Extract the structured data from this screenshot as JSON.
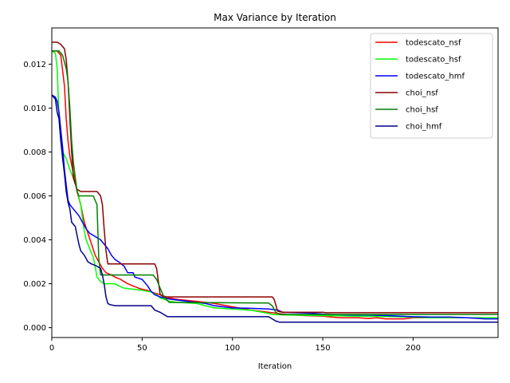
{
  "chart_data": {
    "type": "line",
    "title": "Max Variance by Iteration",
    "xlabel": "Iteration",
    "ylabel": "",
    "xlim": [
      0,
      247
    ],
    "ylim": [
      -0.00045,
      0.01365
    ],
    "xticks": [
      0,
      50,
      100,
      150,
      200
    ],
    "xtick_labels": [
      "0",
      "50",
      "100",
      "150",
      "200"
    ],
    "yticks": [
      0.0,
      0.002,
      0.004,
      0.006,
      0.008,
      0.01,
      0.012
    ],
    "ytick_labels": [
      "0.000",
      "0.002",
      "0.004",
      "0.006",
      "0.008",
      "0.010",
      "0.012"
    ],
    "grid": false,
    "legend_position": "top-right",
    "series": [
      {
        "name": "todescato_nsf",
        "color": "#ff0000",
        "points": [
          [
            0,
            0.0126
          ],
          [
            3,
            0.0126
          ],
          [
            5,
            0.0124
          ],
          [
            7,
            0.011
          ],
          [
            8,
            0.0095
          ],
          [
            9,
            0.0085
          ],
          [
            10,
            0.0078
          ],
          [
            12,
            0.007
          ],
          [
            14,
            0.0062
          ],
          [
            16,
            0.0056
          ],
          [
            18,
            0.0048
          ],
          [
            20,
            0.0043
          ],
          [
            22,
            0.0038
          ],
          [
            24,
            0.0033
          ],
          [
            26,
            0.003
          ],
          [
            28,
            0.0027
          ],
          [
            30,
            0.0025
          ],
          [
            33,
            0.0024
          ],
          [
            35,
            0.0023
          ],
          [
            38,
            0.0022
          ],
          [
            40,
            0.0021
          ],
          [
            42,
            0.002
          ],
          [
            45,
            0.0019
          ],
          [
            48,
            0.0018
          ],
          [
            50,
            0.00175
          ],
          [
            53,
            0.0017
          ],
          [
            56,
            0.0016
          ],
          [
            60,
            0.0015
          ],
          [
            65,
            0.00135
          ],
          [
            70,
            0.00128
          ],
          [
            80,
            0.0012
          ],
          [
            90,
            0.0011
          ],
          [
            100,
            0.00095
          ],
          [
            110,
            0.0008
          ],
          [
            120,
            0.0007
          ],
          [
            125,
            0.00065
          ],
          [
            130,
            0.0006
          ],
          [
            140,
            0.00055
          ],
          [
            150,
            0.00052
          ],
          [
            155,
            0.00048
          ],
          [
            160,
            0.00045
          ],
          [
            170,
            0.00045
          ],
          [
            175,
            0.00042
          ],
          [
            180,
            0.00045
          ],
          [
            185,
            0.0004
          ],
          [
            195,
            0.0004
          ],
          [
            200,
            0.00045
          ],
          [
            247,
            0.00045
          ]
        ]
      },
      {
        "name": "todescato_hsf",
        "color": "#00ff00",
        "points": [
          [
            0,
            0.0126
          ],
          [
            2,
            0.0125
          ],
          [
            3,
            0.0118
          ],
          [
            4,
            0.0095
          ],
          [
            5,
            0.0085
          ],
          [
            6,
            0.008
          ],
          [
            8,
            0.0077
          ],
          [
            10,
            0.0072
          ],
          [
            12,
            0.0068
          ],
          [
            14,
            0.0063
          ],
          [
            16,
            0.0056
          ],
          [
            17,
            0.005
          ],
          [
            18,
            0.0044
          ],
          [
            19,
            0.004
          ],
          [
            21,
            0.0036
          ],
          [
            23,
            0.0032
          ],
          [
            24,
            0.0028
          ],
          [
            25,
            0.0023
          ],
          [
            27,
            0.0021
          ],
          [
            29,
            0.002
          ],
          [
            35,
            0.002
          ],
          [
            37,
            0.0019
          ],
          [
            40,
            0.0018
          ],
          [
            45,
            0.00175
          ],
          [
            50,
            0.0017
          ],
          [
            55,
            0.00162
          ],
          [
            58,
            0.0015
          ],
          [
            60,
            0.00135
          ],
          [
            62,
            0.0013
          ],
          [
            65,
            0.0012
          ],
          [
            70,
            0.00115
          ],
          [
            80,
            0.0011
          ],
          [
            85,
            0.001
          ],
          [
            90,
            0.0009
          ],
          [
            100,
            0.00085
          ],
          [
            110,
            0.0008
          ],
          [
            120,
            0.00065
          ],
          [
            122,
            0.0006
          ],
          [
            130,
            0.00058
          ],
          [
            150,
            0.00055
          ],
          [
            170,
            0.00052
          ],
          [
            190,
            0.0005
          ],
          [
            210,
            0.00045
          ],
          [
            247,
            0.00045
          ]
        ]
      },
      {
        "name": "todescato_hmf",
        "color": "#0000ff",
        "points": [
          [
            0,
            0.0106
          ],
          [
            2,
            0.0105
          ],
          [
            3,
            0.0103
          ],
          [
            4,
            0.0098
          ],
          [
            5,
            0.009
          ],
          [
            6,
            0.0082
          ],
          [
            7,
            0.0072
          ],
          [
            8,
            0.0065
          ],
          [
            9,
            0.0058
          ],
          [
            10,
            0.0056
          ],
          [
            11,
            0.0055
          ],
          [
            13,
            0.0053
          ],
          [
            15,
            0.0051
          ],
          [
            17,
            0.0048
          ],
          [
            19,
            0.0045
          ],
          [
            21,
            0.0043
          ],
          [
            23,
            0.0042
          ],
          [
            25,
            0.0041
          ],
          [
            27,
            0.004
          ],
          [
            29,
            0.0038
          ],
          [
            31,
            0.0036
          ],
          [
            33,
            0.0033
          ],
          [
            35,
            0.0031
          ],
          [
            37,
            0.003
          ],
          [
            40,
            0.0028
          ],
          [
            42,
            0.0025
          ],
          [
            45,
            0.0025
          ],
          [
            46,
            0.0023
          ],
          [
            50,
            0.0022
          ],
          [
            53,
            0.0019
          ],
          [
            55,
            0.00165
          ],
          [
            57,
            0.0015
          ],
          [
            60,
            0.0014
          ],
          [
            65,
            0.0013
          ],
          [
            70,
            0.00125
          ],
          [
            75,
            0.0012
          ],
          [
            80,
            0.00115
          ],
          [
            85,
            0.0011
          ],
          [
            90,
            0.001
          ],
          [
            95,
            0.00095
          ],
          [
            100,
            0.0009
          ],
          [
            110,
            0.00088
          ],
          [
            120,
            0.00085
          ],
          [
            125,
            0.0008
          ],
          [
            128,
            0.0007
          ],
          [
            135,
            0.00068
          ],
          [
            145,
            0.00065
          ],
          [
            150,
            0.00062
          ],
          [
            155,
            0.0006
          ],
          [
            165,
            0.00058
          ],
          [
            175,
            0.00058
          ],
          [
            185,
            0.00055
          ],
          [
            200,
            0.0005
          ],
          [
            210,
            0.00048
          ],
          [
            220,
            0.00048
          ],
          [
            230,
            0.00045
          ],
          [
            240,
            0.0004
          ],
          [
            247,
            0.0004
          ]
        ]
      },
      {
        "name": "choi_nsf",
        "color": "#8b0000",
        "points": [
          [
            0,
            0.013
          ],
          [
            3,
            0.013
          ],
          [
            5,
            0.0129
          ],
          [
            7,
            0.0127
          ],
          [
            8,
            0.0122
          ],
          [
            9,
            0.0112
          ],
          [
            10,
            0.0095
          ],
          [
            11,
            0.008
          ],
          [
            12,
            0.0068
          ],
          [
            14,
            0.0063
          ],
          [
            16,
            0.0062
          ],
          [
            25,
            0.0062
          ],
          [
            27,
            0.006
          ],
          [
            28,
            0.0056
          ],
          [
            29,
            0.0045
          ],
          [
            30,
            0.0035
          ],
          [
            31,
            0.0029
          ],
          [
            57,
            0.0029
          ],
          [
            58,
            0.0027
          ],
          [
            60,
            0.0015
          ],
          [
            61,
            0.00145
          ],
          [
            62,
            0.0014
          ],
          [
            122,
            0.0014
          ],
          [
            123,
            0.0013
          ],
          [
            125,
            0.00075
          ],
          [
            128,
            0.0007
          ],
          [
            150,
            0.0007
          ],
          [
            152,
            0.00068
          ],
          [
            247,
            0.00068
          ]
        ]
      },
      {
        "name": "choi_hsf",
        "color": "#008000",
        "points": [
          [
            0,
            0.0126
          ],
          [
            4,
            0.0126
          ],
          [
            6,
            0.0124
          ],
          [
            8,
            0.0118
          ],
          [
            9,
            0.0112
          ],
          [
            10,
            0.01
          ],
          [
            11,
            0.0085
          ],
          [
            12,
            0.0075
          ],
          [
            14,
            0.0062
          ],
          [
            15,
            0.006
          ],
          [
            23,
            0.006
          ],
          [
            25,
            0.0056
          ],
          [
            26,
            0.0032
          ],
          [
            27,
            0.0024
          ],
          [
            56,
            0.0024
          ],
          [
            58,
            0.0022
          ],
          [
            60,
            0.0018
          ],
          [
            62,
            0.0014
          ],
          [
            65,
            0.00115
          ],
          [
            120,
            0.00112
          ],
          [
            122,
            0.001
          ],
          [
            124,
            0.0007
          ],
          [
            126,
            0.0006
          ],
          [
            247,
            0.0006
          ]
        ]
      },
      {
        "name": "choi_hmf",
        "color": "#00008b",
        "points": [
          [
            0,
            0.0106
          ],
          [
            2,
            0.0104
          ],
          [
            3,
            0.0098
          ],
          [
            4,
            0.0095
          ],
          [
            5,
            0.0085
          ],
          [
            6,
            0.0077
          ],
          [
            7,
            0.007
          ],
          [
            8,
            0.0062
          ],
          [
            9,
            0.0057
          ],
          [
            10,
            0.0054
          ],
          [
            11,
            0.0048
          ],
          [
            13,
            0.0046
          ],
          [
            14,
            0.0042
          ],
          [
            15,
            0.0038
          ],
          [
            16,
            0.0035
          ],
          [
            18,
            0.0033
          ],
          [
            20,
            0.003
          ],
          [
            22,
            0.0029
          ],
          [
            25,
            0.0028
          ],
          [
            27,
            0.0027
          ],
          [
            28,
            0.0024
          ],
          [
            29,
            0.002
          ],
          [
            30,
            0.0014
          ],
          [
            31,
            0.0011
          ],
          [
            32,
            0.00105
          ],
          [
            35,
            0.001
          ],
          [
            55,
            0.001
          ],
          [
            57,
            0.0008
          ],
          [
            60,
            0.0007
          ],
          [
            62,
            0.0006
          ],
          [
            64,
            0.0005
          ],
          [
            120,
            0.0005
          ],
          [
            122,
            0.0004
          ],
          [
            124,
            0.0003
          ],
          [
            126,
            0.00025
          ],
          [
            247,
            0.00025
          ]
        ]
      }
    ]
  }
}
